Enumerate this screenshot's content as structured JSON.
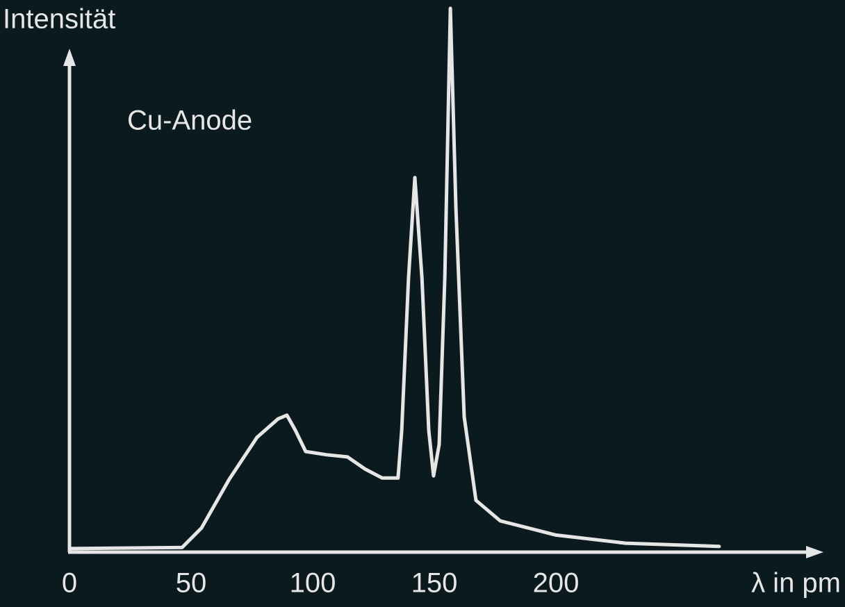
{
  "chart_data": {
    "type": "line",
    "title": "Intensität",
    "annotation": "Cu-Anode",
    "x_label": "λ in pm",
    "x": [
      0,
      46.3,
      54.3,
      65.7,
      77.1,
      85.7,
      89.4,
      92.9,
      97.1,
      105.7,
      114.3,
      121.4,
      128.6,
      135.1,
      136.6,
      139.4,
      142,
      144.9,
      147.7,
      149.7,
      152,
      154.3,
      156.6,
      158.9,
      162.3,
      167.1,
      177.1,
      200,
      228.6,
      267.1
    ],
    "values": [
      0.4,
      0.6,
      4.2,
      13.2,
      20.9,
      24.3,
      25.0,
      22.2,
      18.3,
      17.7,
      17.3,
      15.1,
      13.4,
      13.4,
      22.2,
      50.3,
      68.8,
      50.3,
      22.2,
      13.8,
      19.6,
      50.3,
      100,
      63.1,
      24.7,
      9.3,
      5.5,
      2.9,
      1.4,
      0.8
    ],
    "color": "#e6e6e6",
    "xlim": [
      0,
      310
    ],
    "xticks": [
      0,
      50,
      100,
      150,
      200
    ],
    "ylim": [
      0,
      100
    ]
  }
}
